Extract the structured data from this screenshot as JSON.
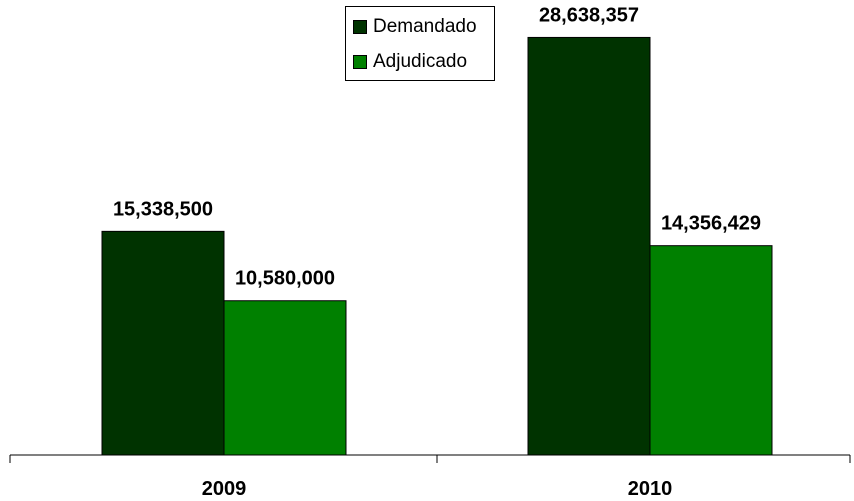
{
  "chart_data": {
    "type": "bar",
    "categories": [
      "2009",
      "2010"
    ],
    "series": [
      {
        "name": "Demandado",
        "values": [
          15338500,
          28638357
        ],
        "labels": [
          "15,338,500",
          "28,638,357"
        ],
        "color": "#003300"
      },
      {
        "name": "Adjudicado",
        "values": [
          10580000,
          14356429
        ],
        "labels": [
          "10,580,000",
          "14,356,429"
        ],
        "color": "#008000"
      }
    ],
    "title": "",
    "xlabel": "",
    "ylabel": "",
    "ylim": [
      0,
      31000000
    ],
    "grid": false,
    "legend": "top-center"
  }
}
